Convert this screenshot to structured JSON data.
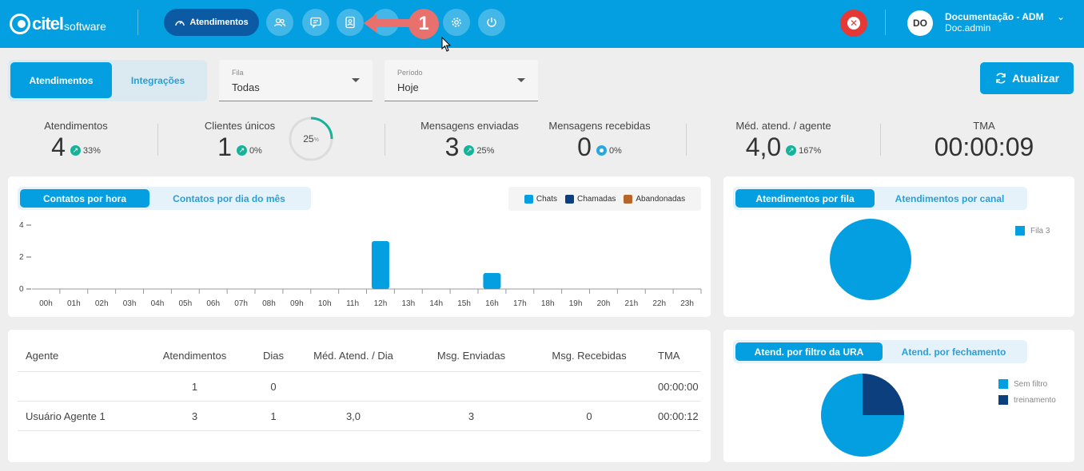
{
  "header": {
    "logo_text": "citel",
    "logo_sub": "software",
    "nav_active_label": "Atendimentos",
    "annotation_badge": "1",
    "user": {
      "initials": "DO",
      "name": "Documentação - ADM",
      "login": "Doc.admin"
    }
  },
  "filters": {
    "segment": {
      "options": [
        "Atendimentos",
        "Integrações"
      ],
      "selected": "Atendimentos"
    },
    "fila": {
      "label": "Fila",
      "value": "Todas"
    },
    "periodo": {
      "label": "Período",
      "value": "Hoje"
    },
    "refresh_label": "Atualizar"
  },
  "stats": {
    "atendimentos": {
      "title": "Atendimentos",
      "value": "4",
      "change": "33%"
    },
    "clientes": {
      "title": "Clientes únicos",
      "value": "1",
      "change": "0%",
      "ring_value": "25",
      "ring_unit": "%",
      "ring_fraction": 0.25
    },
    "enviadas": {
      "title": "Mensagens enviadas",
      "value": "3",
      "change": "25%"
    },
    "recebidas": {
      "title": "Mensagens recebidas",
      "value": "0",
      "change": "0%"
    },
    "media": {
      "title": "Méd. atend. / agente",
      "value": "4,0",
      "change": "167%"
    },
    "tma": {
      "title": "TMA",
      "value": "00:00:09"
    }
  },
  "hourly_card": {
    "tabs": [
      "Contatos por hora",
      "Contatos por dia do mês"
    ],
    "legend": [
      {
        "label": "Chats",
        "color": "#039fe0"
      },
      {
        "label": "Chamadas",
        "color": "#0b3f7e"
      },
      {
        "label": "Abandonadas",
        "color": "#b8652b"
      }
    ]
  },
  "queue_card": {
    "tabs": [
      "Atendimentos por fila",
      "Atendimentos por canal"
    ],
    "legend": [
      {
        "label": "Fila 3",
        "color": "#039fe0"
      }
    ]
  },
  "ura_card": {
    "tabs": [
      "Atend. por filtro da URA",
      "Atend. por fechamento"
    ],
    "legend": [
      {
        "label": "Sem filtro",
        "color": "#039fe0"
      },
      {
        "label": "treinamento",
        "color": "#0b3f7e"
      }
    ]
  },
  "table": {
    "headers": [
      "Agente",
      "Atendimentos",
      "Dias",
      "Méd. Atend. / Dia",
      "Msg. Enviadas",
      "Msg. Recebidas",
      "TMA"
    ],
    "rows": [
      [
        "",
        "1",
        "0",
        "",
        "",
        "",
        "00:00:00"
      ],
      [
        "Usuário Agente 1",
        "3",
        "1",
        "3,0",
        "3",
        "0",
        "00:00:12"
      ]
    ]
  },
  "chart_data": [
    {
      "type": "bar",
      "categories": [
        "00h",
        "01h",
        "02h",
        "03h",
        "04h",
        "05h",
        "06h",
        "07h",
        "08h",
        "09h",
        "10h",
        "11h",
        "12h",
        "13h",
        "14h",
        "15h",
        "16h",
        "17h",
        "18h",
        "19h",
        "20h",
        "21h",
        "22h",
        "23h"
      ],
      "series": [
        {
          "name": "Chats",
          "values": [
            0,
            0,
            0,
            0,
            0,
            0,
            0,
            0,
            0,
            0,
            0,
            0,
            3,
            0,
            0,
            0,
            1,
            0,
            0,
            0,
            0,
            0,
            0,
            0
          ]
        },
        {
          "name": "Chamadas",
          "values": [
            0,
            0,
            0,
            0,
            0,
            0,
            0,
            0,
            0,
            0,
            0,
            0,
            0,
            0,
            0,
            0,
            0,
            0,
            0,
            0,
            0,
            0,
            0,
            0
          ]
        },
        {
          "name": "Abandonadas",
          "values": [
            0,
            0,
            0,
            0,
            0,
            0,
            0,
            0,
            0,
            0,
            0,
            0,
            0,
            0,
            0,
            0,
            0,
            0,
            0,
            0,
            0,
            0,
            0,
            0
          ]
        }
      ],
      "yticks": [
        "4",
        "2",
        "0"
      ],
      "ylim": [
        0,
        4
      ],
      "legend": "top-right"
    },
    {
      "type": "pie",
      "labels": [
        "Fila 3"
      ],
      "values": [
        1
      ],
      "legend": "right"
    },
    {
      "type": "pie",
      "labels": [
        "Sem filtro",
        "treinamento"
      ],
      "values": [
        3,
        1
      ],
      "legend": "right"
    }
  ]
}
